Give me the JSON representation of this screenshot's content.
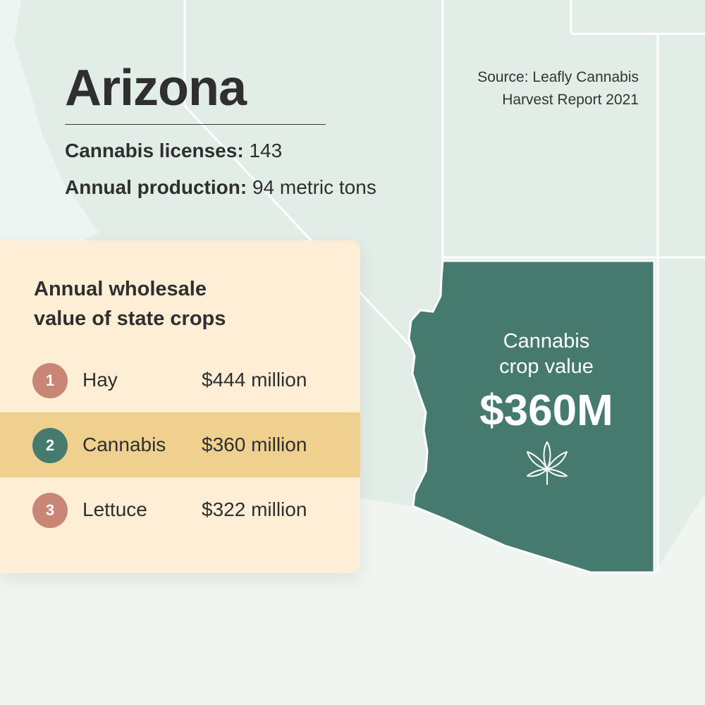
{
  "header": {
    "title": "Arizona",
    "source_line_1": "Source: Leafly Cannabis",
    "source_line_2": "Harvest Report 2021"
  },
  "stats": {
    "licenses_label": "Cannabis licenses:",
    "licenses_value": "143",
    "production_label": "Annual production:",
    "production_value": "94 metric tons"
  },
  "panel": {
    "title_line_1": "Annual wholesale",
    "title_line_2": "value of state crops",
    "rows": [
      {
        "rank": "1",
        "crop": "Hay",
        "value": "$444 million",
        "highlighted": false,
        "badge_color": "#c98677"
      },
      {
        "rank": "2",
        "crop": "Cannabis",
        "value": "$360 million",
        "highlighted": true,
        "badge_color": "#467a6e"
      },
      {
        "rank": "3",
        "crop": "Lettuce",
        "value": "$322 million",
        "highlighted": false,
        "badge_color": "#c98677"
      }
    ]
  },
  "map": {
    "state_label_line_1": "Cannabis",
    "state_label_line_2": "crop value",
    "state_value": "$360M",
    "state_color": "#467a6e",
    "icon": "cannabis-leaf-icon"
  },
  "colors": {
    "background": "#eef4f1",
    "neighbor_land": "#e3ede8",
    "panel": "#fdeed5",
    "highlight": "#efd08e"
  }
}
